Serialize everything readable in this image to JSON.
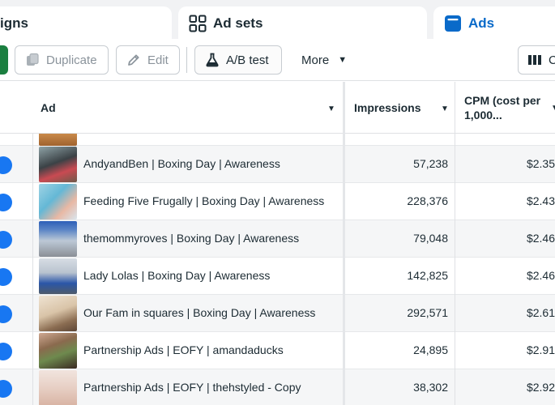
{
  "tabs": {
    "campaigns_label": "igns",
    "adsets_label": "Ad sets",
    "ads_label": "Ads"
  },
  "toolbar": {
    "duplicate_label": "Duplicate",
    "edit_label": "Edit",
    "abtest_label": "A/B test",
    "more_label": "More",
    "columns_label": "C"
  },
  "table": {
    "headers": {
      "ad": "Ad",
      "impressions": "Impressions",
      "cpm_line1": "CPM (cost per",
      "cpm_line2": "1,000..."
    },
    "rows": [
      {
        "name": "AndyandBen | Boxing Day | Awareness",
        "impressions": "57,238",
        "cpm": "$2.35"
      },
      {
        "name": "Feeding Five Frugally | Boxing Day | Awareness",
        "impressions": "228,376",
        "cpm": "$2.43"
      },
      {
        "name": "themommyroves | Boxing Day | Awareness",
        "impressions": "79,048",
        "cpm": "$2.46"
      },
      {
        "name": "Lady Lolas | Boxing Day | Awareness",
        "impressions": "142,825",
        "cpm": "$2.46"
      },
      {
        "name": "Our Fam in squares | Boxing Day | Awareness",
        "impressions": "292,571",
        "cpm": "$2.61"
      },
      {
        "name": "Partnership Ads | EOFY | amandaducks",
        "impressions": "24,895",
        "cpm": "$2.91"
      },
      {
        "name": "Partnership Ads | EOFY | thehstyled - Copy",
        "impressions": "38,302",
        "cpm": "$2.92"
      }
    ]
  },
  "colors": {
    "accent": "#0a6ac9",
    "status_dot": "#1877f2",
    "publish_green": "#1b7f40"
  }
}
